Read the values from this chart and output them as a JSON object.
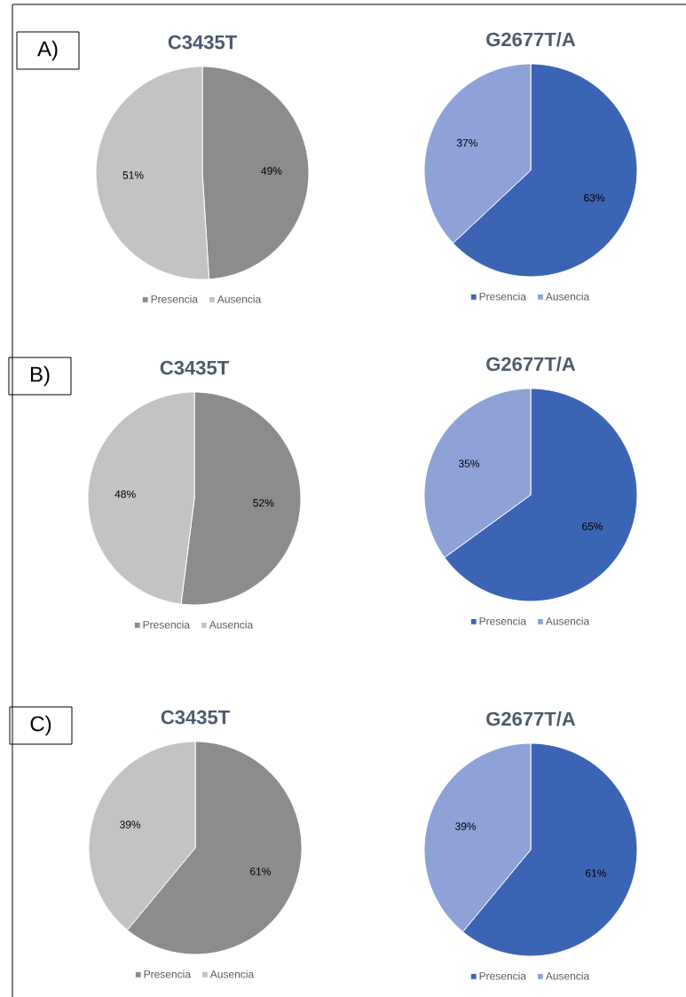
{
  "chart_data": [
    {
      "type": "pie",
      "title": "C3435T",
      "categories": [
        "Presencia",
        "Ausencia"
      ],
      "values": [
        49,
        51
      ],
      "colors": [
        "#8c8c8c",
        "#c3c3c3"
      ],
      "value_labels": [
        "49%",
        "51%"
      ],
      "legend": "bottom",
      "annotations": [
        "A)"
      ]
    },
    {
      "type": "pie",
      "title": "G2677T/A",
      "categories": [
        "Presencia",
        "Ausencia"
      ],
      "values": [
        63,
        37
      ],
      "colors": [
        "#3c64b4",
        "#8ea2d8"
      ],
      "value_labels": [
        "63%",
        "37%"
      ],
      "legend": "bottom"
    },
    {
      "type": "pie",
      "title": "C3435T",
      "categories": [
        "Presencia",
        "Ausencia"
      ],
      "values": [
        52,
        48
      ],
      "colors": [
        "#8c8c8c",
        "#c3c3c3"
      ],
      "value_labels": [
        "52%",
        "48%"
      ],
      "legend": "bottom",
      "annotations": [
        "B)"
      ]
    },
    {
      "type": "pie",
      "title": "G2677T/A",
      "categories": [
        "Presencia",
        "Ausencia"
      ],
      "values": [
        65,
        35
      ],
      "colors": [
        "#3c64b4",
        "#8ea2d8"
      ],
      "value_labels": [
        "65%",
        "35%"
      ],
      "legend": "bottom"
    },
    {
      "type": "pie",
      "title": "C3435T",
      "categories": [
        "Presencia",
        "Ausencia"
      ],
      "values": [
        61,
        39
      ],
      "colors": [
        "#8c8c8c",
        "#c3c3c3"
      ],
      "value_labels": [
        "61%",
        "39%"
      ],
      "legend": "bottom",
      "annotations": [
        "C)"
      ]
    },
    {
      "type": "pie",
      "title": "G2677T/A",
      "categories": [
        "Presencia",
        "Ausencia"
      ],
      "values": [
        61,
        39
      ],
      "colors": [
        "#3c64b4",
        "#8ea2d8"
      ],
      "value_labels": [
        "61%",
        "39%"
      ],
      "legend": "bottom"
    }
  ]
}
